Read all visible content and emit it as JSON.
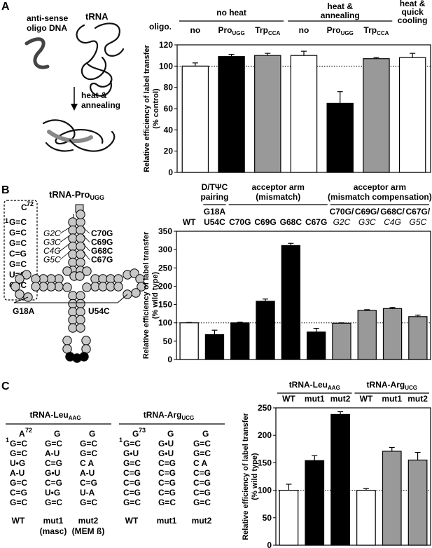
{
  "panels": [
    "A",
    "B",
    "C"
  ],
  "panel_a": {
    "oligo_label": "anti-sense\noligo DNA",
    "trna_label": "tRNA",
    "step_label": "heat &\nannealing",
    "row_label": "oligo.",
    "groups": [
      {
        "label": "no heat"
      },
      {
        "label": "heat &\nannealing"
      },
      {
        "label": "heat &\nquick\ncooling"
      }
    ],
    "bar_labels": [
      {
        "main": "no",
        "sub": ""
      },
      {
        "main": "Pro",
        "sub": "UGG"
      },
      {
        "main": "Trp",
        "sub": "CCA"
      },
      {
        "main": "no",
        "sub": ""
      },
      {
        "main": "Pro",
        "sub": "UGG"
      },
      {
        "main": "Trp",
        "sub": "CCA"
      },
      {
        "main": "",
        "sub": ""
      }
    ]
  },
  "panel_b": {
    "trna_title": {
      "main": "tRNA-Pro",
      "sub": "UGG"
    },
    "stem_box": [
      "C",
      "72",
      "1",
      "G=C",
      "G=C",
      "G=C",
      "C=G",
      "G=C",
      "U=G",
      "G=C"
    ],
    "acceptor_mutations": [
      "C70G",
      "C69G",
      "G68C",
      "C67G"
    ],
    "compensating_mutations": [
      "G2C",
      "G3C",
      "C4G",
      "G5C"
    ],
    "loop_mutations": [
      "G18A",
      "U54C"
    ],
    "groups": [
      {
        "label": "D/TΨC\npairing"
      },
      {
        "label": "acceptor arm\n(mismatch)"
      },
      {
        "label": "acceptor arm\n(mismatch compensation)"
      }
    ],
    "bar_labels": [
      {
        "l1": "WT",
        "l2": ""
      },
      {
        "l1": "G18A",
        "l2": "U54C"
      },
      {
        "l1": "C70G",
        "l2": ""
      },
      {
        "l1": "C69G",
        "l2": ""
      },
      {
        "l1": "G68C",
        "l2": ""
      },
      {
        "l1": "C67G",
        "l2": ""
      },
      {
        "l1": "C70G/",
        "l2": "G2C"
      },
      {
        "l1": "C69G/",
        "l2": "G3C"
      },
      {
        "l1": "G68C/",
        "l2": "C4G"
      },
      {
        "l1": "C67G/",
        "l2": "G5C"
      }
    ]
  },
  "panel_c": {
    "leu": {
      "title": {
        "main": "tRNA-Leu",
        "sub": "AAG"
      },
      "columns": [
        {
          "top": "A",
          "top_sup": "72",
          "start": "1",
          "pairs": [
            "G=C",
            "G=C",
            "U•G",
            "A-U",
            "G=C",
            "C=G",
            "G=C"
          ],
          "label": "WT",
          "label2": ""
        },
        {
          "top": "G",
          "top_sup": "",
          "start": "",
          "pairs": [
            "G=C",
            "A-U",
            "C=G",
            "G•U",
            "C=G",
            "U•G",
            "G=C"
          ],
          "label": "mut1",
          "label2": "(masc)"
        },
        {
          "top": "G",
          "top_sup": "",
          "start": "",
          "pairs": [
            "G=C",
            "G=C",
            "C  A",
            "A-U",
            "C=G",
            "U-A",
            "G=C"
          ],
          "label": "mut2",
          "label2": "(MEM ß)"
        }
      ]
    },
    "arg": {
      "title": {
        "main": "tRNA-Arg",
        "sub": "UCG"
      },
      "columns": [
        {
          "top": "G",
          "top_sup": "73",
          "start": "1",
          "pairs": [
            "G=C",
            "G•U",
            "G=C",
            "C=G",
            "C=G",
            "C=G",
            "G=C"
          ],
          "label": "WT",
          "label2": ""
        },
        {
          "top": "G",
          "top_sup": "",
          "start": "",
          "pairs": [
            "G•U",
            "G•U",
            "C=G",
            "C=G",
            "C=G",
            "C=G",
            "G=C"
          ],
          "label": "mut1",
          "label2": ""
        },
        {
          "top": "G",
          "top_sup": "",
          "start": "",
          "pairs": [
            "G=C",
            "G=C",
            "C  A",
            "C=G",
            "C=G",
            "C=G",
            "G=C"
          ],
          "label": "mut2",
          "label2": ""
        }
      ]
    },
    "groups": [
      {
        "main": "tRNA-Leu",
        "sub": "AAG"
      },
      {
        "main": "tRNA-Arg",
        "sub": "UCG"
      }
    ],
    "bar_labels": [
      "WT",
      "mut1",
      "mut2",
      "WT",
      "mut1",
      "mut2"
    ]
  },
  "chart_data": [
    {
      "type": "bar",
      "panel": "A",
      "categories": [
        "no",
        "Pro UGG",
        "Trp CCA",
        "no",
        "Pro UGG",
        "Trp CCA",
        ""
      ],
      "values": [
        100,
        109,
        110,
        110,
        65,
        107,
        108
      ],
      "errors": [
        3,
        2,
        2,
        4,
        11,
        1,
        4
      ],
      "fills": [
        "#ffffff",
        "#000000",
        "#999999",
        "#ffffff",
        "#000000",
        "#999999",
        "#ffffff"
      ],
      "ylabel": "Relative efficiency of label transfer\n(% control)",
      "ylim": [
        0,
        120
      ],
      "yticks": [
        0,
        20,
        40,
        60,
        80,
        100,
        120
      ],
      "reference_line": 100
    },
    {
      "type": "bar",
      "panel": "B",
      "categories": [
        "WT",
        "G18A U54C",
        "C70G",
        "C69G",
        "G68C",
        "C67G",
        "C70G/G2C",
        "C69G/G3C",
        "G68C/C4G",
        "C67G/G5C"
      ],
      "values": [
        100,
        68,
        100,
        159,
        311,
        75,
        99,
        134,
        139,
        117
      ],
      "errors": [
        1,
        12,
        2,
        6,
        6,
        10,
        1,
        2,
        3,
        4
      ],
      "fills": [
        "#ffffff",
        "#000000",
        "#000000",
        "#000000",
        "#000000",
        "#000000",
        "#999999",
        "#999999",
        "#999999",
        "#999999"
      ],
      "ylabel": "Relative efficiency of label transfer\n(% wild type)",
      "ylim": [
        0,
        350
      ],
      "yticks": [
        0,
        50,
        100,
        150,
        200,
        250,
        300,
        350
      ],
      "reference_line": 100
    },
    {
      "type": "bar",
      "panel": "C",
      "categories": [
        "WT",
        "mut1",
        "mut2",
        "WT",
        "mut1",
        "mut2"
      ],
      "values": [
        100,
        154,
        238,
        100,
        171,
        155
      ],
      "errors": [
        11,
        9,
        5,
        3,
        7,
        14
      ],
      "fills": [
        "#ffffff",
        "#000000",
        "#000000",
        "#ffffff",
        "#999999",
        "#999999"
      ],
      "ylabel": "Relative efficiency of label transfer\n(% wild type)",
      "ylim": [
        0,
        250
      ],
      "yticks": [
        0,
        50,
        100,
        150,
        200,
        250
      ],
      "reference_line": 100
    }
  ]
}
